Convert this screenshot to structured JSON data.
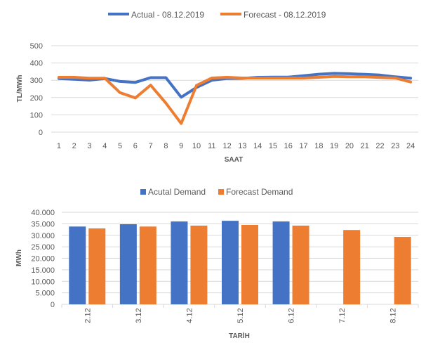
{
  "colors": {
    "blue": "#4472C4",
    "orange": "#ED7D31",
    "grid": "#D9D9D9",
    "text": "#595959"
  },
  "chart_data": [
    {
      "type": "line",
      "title": "",
      "xlabel": "SAAT",
      "ylabel": "TL/MWh",
      "ylim": [
        0,
        500
      ],
      "yticks": [
        "0",
        "100",
        "200",
        "300",
        "400",
        "500"
      ],
      "ytick_values": [
        0,
        100,
        200,
        300,
        400,
        500
      ],
      "categories": [
        "1",
        "2",
        "3",
        "4",
        "5",
        "6",
        "7",
        "8",
        "9",
        "10",
        "11",
        "12",
        "13",
        "14",
        "15",
        "16",
        "17",
        "18",
        "19",
        "20",
        "21",
        "22",
        "23",
        "24"
      ],
      "legend_position": "top",
      "series": [
        {
          "name": "Actual - 08.12.2019",
          "color": "#4472C4",
          "values": [
            310,
            306,
            301,
            310,
            293,
            288,
            315,
            315,
            202,
            258,
            300,
            310,
            311,
            317,
            318,
            318,
            326,
            335,
            340,
            338,
            334,
            330,
            320,
            312
          ]
        },
        {
          "name": "Forecast - 08.12.2019",
          "color": "#ED7D31",
          "values": [
            317,
            317,
            312,
            312,
            228,
            198,
            272,
            168,
            50,
            270,
            313,
            317,
            313,
            313,
            313,
            313,
            313,
            317,
            322,
            320,
            320,
            316,
            313,
            290
          ]
        }
      ]
    },
    {
      "type": "bar",
      "title": "",
      "xlabel": "TARİH",
      "ylabel": "MWh",
      "ylim": [
        0,
        40000
      ],
      "yticks": [
        "0",
        "5.000",
        "10.000",
        "15.000",
        "20.000",
        "25.000",
        "30.000",
        "35.000",
        "40.000"
      ],
      "ytick_values": [
        0,
        5000,
        10000,
        15000,
        20000,
        25000,
        30000,
        35000,
        40000
      ],
      "categories": [
        "2.12",
        "3.12",
        "4.12",
        "5.12",
        "6.12",
        "7.12",
        "8.12"
      ],
      "legend_position": "top",
      "series": [
        {
          "name": "Acutal Demand",
          "color": "#4472C4",
          "values": [
            33800,
            34800,
            36000,
            36300,
            36000,
            null,
            null
          ]
        },
        {
          "name": "Forecast Demand",
          "color": "#ED7D31",
          "values": [
            33000,
            33800,
            34200,
            34500,
            34200,
            32300,
            29300
          ]
        }
      ]
    }
  ]
}
